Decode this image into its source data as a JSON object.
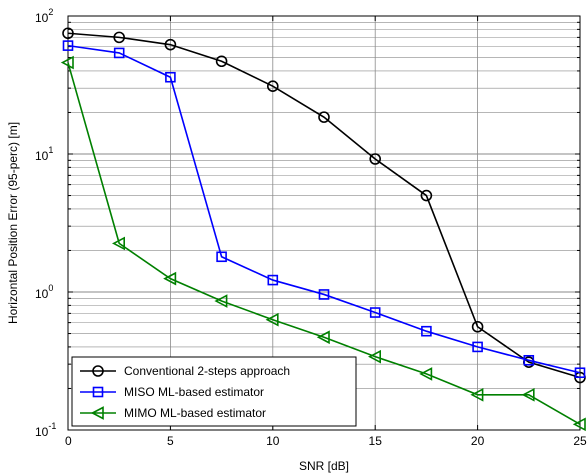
{
  "chart_data": {
    "type": "line",
    "title": "",
    "xlabel": "SNR [dB]",
    "ylabel": "Horizontal Position Error (95-perc) [m]",
    "xlim": [
      0,
      25
    ],
    "ylim": [
      0.1,
      100
    ],
    "yscale": "log",
    "grid": true,
    "legend_position": "bottom-left",
    "x_ticks": [
      0,
      5,
      10,
      15,
      20,
      25
    ],
    "x_tick_labels": [
      "0",
      "5",
      "10",
      "15",
      "20",
      "25"
    ],
    "y_ticks": [
      {
        "value": 0.1,
        "base": "10",
        "exp": "-1"
      },
      {
        "value": 1,
        "base": "10",
        "exp": "0"
      },
      {
        "value": 10,
        "base": "10",
        "exp": "1"
      },
      {
        "value": 100,
        "base": "10",
        "exp": "2"
      }
    ],
    "x": [
      0,
      2.5,
      5,
      7.5,
      10,
      12.5,
      15,
      17.5,
      20,
      22.5,
      25
    ],
    "series": [
      {
        "name": "Conventional 2-steps approach",
        "color": "#000000",
        "marker": "circle",
        "values": [
          75,
          70,
          62,
          47,
          31,
          18.5,
          9.2,
          5.0,
          0.56,
          0.31,
          0.24
        ]
      },
      {
        "name": "MISO ML-based estimator",
        "color": "#0000ff",
        "marker": "square",
        "values": [
          61,
          54,
          36,
          1.8,
          1.22,
          0.96,
          0.71,
          0.52,
          0.4,
          0.32,
          0.26
        ]
      },
      {
        "name": "MIMO ML-based estimator",
        "color": "#008000",
        "marker": "triangle-left",
        "values": [
          46,
          2.25,
          1.25,
          0.86,
          0.63,
          0.47,
          0.34,
          0.255,
          0.18,
          0.18,
          0.11
        ]
      }
    ]
  }
}
